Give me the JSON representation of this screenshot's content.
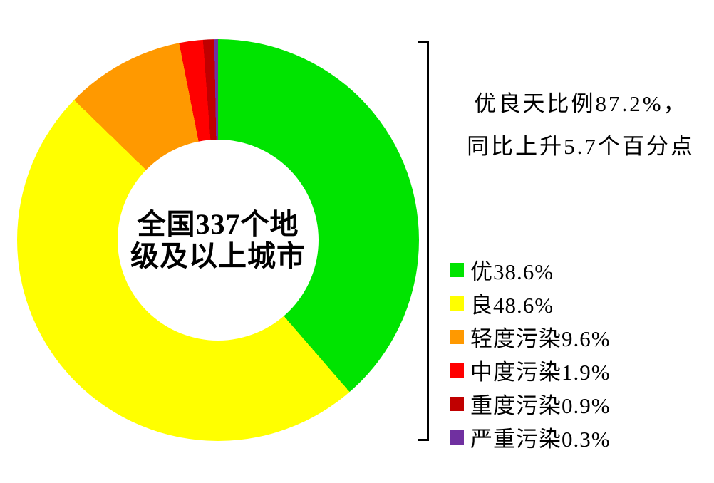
{
  "colors": {
    "background": "#FFFFFF",
    "text": "#000000",
    "bracket": "#000000"
  },
  "chart_data": {
    "type": "pie",
    "subtype": "donut",
    "direction": "clockwise",
    "start_angle_deg": 0,
    "inner_radius_ratio": 0.5,
    "legend_position": "right",
    "center_label_line1": "全国337个地",
    "center_label_line2": "级及以上城市",
    "segments": [
      {
        "label": "优",
        "value": 38.6,
        "color": "#00E400"
      },
      {
        "label": "良",
        "value": 48.6,
        "color": "#FFFF00"
      },
      {
        "label": "轻度污染",
        "value": 9.6,
        "color": "#FF9900"
      },
      {
        "label": "中度污染",
        "value": 1.9,
        "color": "#FF0000"
      },
      {
        "label": "重度污染",
        "value": 0.9,
        "color": "#C00000"
      },
      {
        "label": "严重污染",
        "value": 0.3,
        "color": "#7030A0"
      }
    ],
    "legend": [
      {
        "text": "优38.6%",
        "color": "#00E400"
      },
      {
        "text": "良48.6%",
        "color": "#FFFF00"
      },
      {
        "text": "轻度污染9.6%",
        "color": "#FF9900"
      },
      {
        "text": "中度污染1.9%",
        "color": "#FF0000"
      },
      {
        "text": "重度污染0.9%",
        "color": "#C00000"
      },
      {
        "text": "严重污染0.3%",
        "color": "#7030A0"
      }
    ],
    "annotation": {
      "line1": "优良天比例87.2%，",
      "line2": "同比上升5.7个百分点"
    }
  }
}
